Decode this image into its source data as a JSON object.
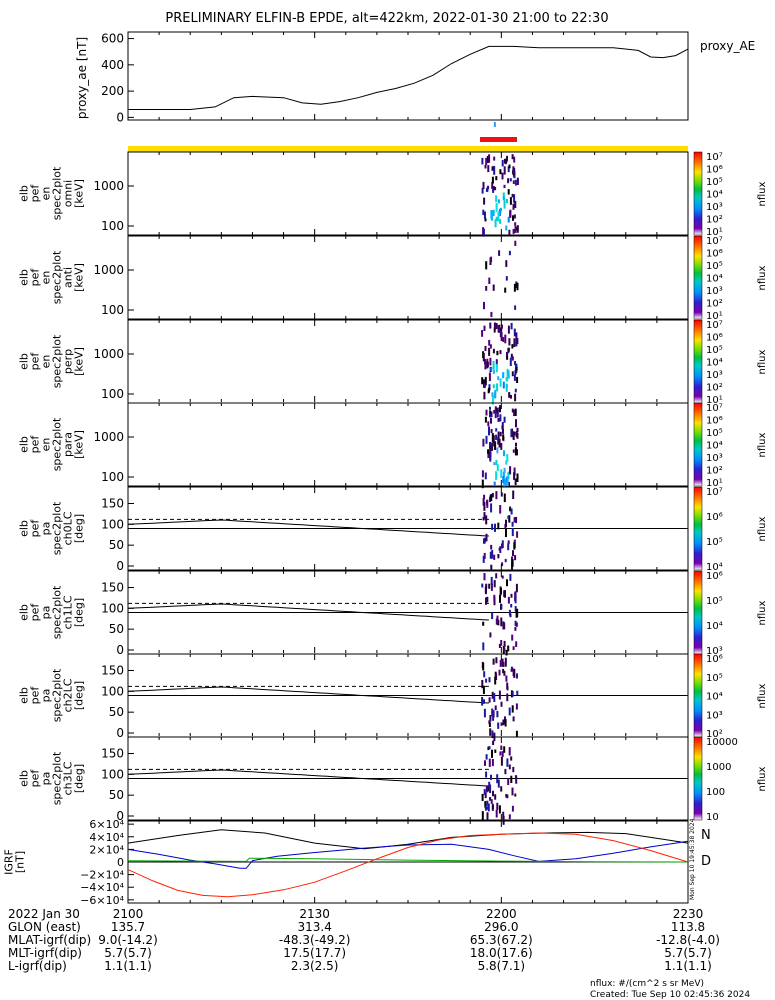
{
  "title": "PRELIMINARY ELFIN-B EPDE, alt=422km, 2022-01-30 21:00 to 22:30",
  "ae_panel": {
    "ylabel": "proxy_ae [nT]",
    "legend": "proxy_AE",
    "yticks": [
      "600",
      "400",
      "200",
      "0"
    ],
    "series": {
      "name": "proxy_AE",
      "t": [
        0,
        5,
        10,
        14,
        17,
        20,
        25,
        28,
        31,
        34,
        37,
        40,
        43,
        46,
        49,
        52,
        55,
        58,
        60,
        62,
        66,
        70,
        74,
        78,
        82,
        84,
        86,
        88,
        90
      ],
      "v": [
        60,
        60,
        60,
        80,
        150,
        160,
        150,
        110,
        100,
        120,
        150,
        190,
        220,
        260,
        320,
        410,
        480,
        540,
        540,
        540,
        530,
        530,
        530,
        530,
        510,
        460,
        455,
        470,
        520
      ]
    }
  },
  "spec_panels": [
    {
      "ylabel_lines": [
        "elb",
        "pef",
        "en",
        "spec2plot",
        "omni",
        "[keV]"
      ],
      "yticks": [
        "1000",
        "100"
      ],
      "cbar_ticks": [
        "10⁷",
        "10⁶",
        "10⁵",
        "10⁴",
        "10³",
        "10²",
        "10¹"
      ],
      "cbar_label": "nflux"
    },
    {
      "ylabel_lines": [
        "elb",
        "pef",
        "en",
        "spec2plot",
        "anti",
        "[keV]"
      ],
      "yticks": [
        "1000",
        "100"
      ],
      "cbar_ticks": [
        "10⁷",
        "10⁶",
        "10⁵",
        "10⁴",
        "10³",
        "10²",
        "10¹"
      ],
      "cbar_label": "nflux"
    },
    {
      "ylabel_lines": [
        "elb",
        "pef",
        "en",
        "spec2plot",
        "perp",
        "[keV]"
      ],
      "yticks": [
        "1000",
        "100"
      ],
      "cbar_ticks": [
        "10⁷",
        "10⁶",
        "10⁵",
        "10⁴",
        "10³",
        "10²",
        "10¹"
      ],
      "cbar_label": "nflux"
    },
    {
      "ylabel_lines": [
        "elb",
        "pef",
        "en",
        "spec2plot",
        "para",
        "[keV]"
      ],
      "yticks": [
        "1000",
        "100"
      ],
      "cbar_ticks": [
        "10⁷",
        "10⁶",
        "10⁵",
        "10⁴",
        "10³",
        "10²",
        "10¹"
      ],
      "cbar_label": "nflux"
    }
  ],
  "pa_panels": [
    {
      "ylabel_lines": [
        "elb",
        "pef",
        "pa",
        "spec2plot",
        "ch0LC",
        "[deg]"
      ],
      "yticks": [
        "150",
        "100",
        "50",
        "0"
      ],
      "cbar_ticks": [
        "10⁷",
        "10⁶",
        "10⁵",
        "10⁴"
      ],
      "cbar_label": "nflux"
    },
    {
      "ylabel_lines": [
        "elb",
        "pef",
        "pa",
        "spec2plot",
        "ch1LC",
        "[deg]"
      ],
      "yticks": [
        "150",
        "100",
        "50",
        "0"
      ],
      "cbar_ticks": [
        "10⁶",
        "10⁵",
        "10⁴",
        "10³"
      ],
      "cbar_label": "nflux"
    },
    {
      "ylabel_lines": [
        "elb",
        "pef",
        "pa",
        "spec2plot",
        "ch2LC",
        "[deg]"
      ],
      "yticks": [
        "150",
        "100",
        "50",
        "0"
      ],
      "cbar_ticks": [
        "10⁶",
        "10⁵",
        "10⁴",
        "10³",
        "10²"
      ],
      "cbar_label": "nflux"
    },
    {
      "ylabel_lines": [
        "elb",
        "pef",
        "pa",
        "spec2plot",
        "ch3LC",
        "[deg]"
      ],
      "yticks": [
        "150",
        "100",
        "50",
        "0"
      ],
      "cbar_ticks": [
        "10000",
        "1000",
        "100",
        "10"
      ],
      "cbar_label": "nflux"
    }
  ],
  "igrf_panel": {
    "ylabel_lines": [
      "IGRF",
      "[nT]"
    ],
    "yticks": [
      "6×10⁴",
      "4×10⁴",
      "2×10⁴",
      "0",
      "−2×10⁴",
      "−4×10⁴",
      "−6×10⁴"
    ],
    "legend": [
      {
        "label": "N",
        "color": "#0000cc"
      },
      {
        "label": "D",
        "color": "#ff2200"
      }
    ],
    "side_note": "Mon Sep 10 19:45:38 2024",
    "series": [
      {
        "name": "black",
        "color": "#000000",
        "t": [
          0,
          8,
          15,
          22,
          30,
          38,
          45,
          52,
          60,
          67,
          74,
          80,
          86,
          90
        ],
        "v": [
          30000,
          42000,
          51000,
          46000,
          30000,
          21000,
          28000,
          39000,
          44000,
          46000,
          47000,
          45000,
          36000,
          30000
        ]
      },
      {
        "name": "blue",
        "color": "#0000cc",
        "t": [
          0,
          5,
          10,
          14,
          18,
          19,
          20,
          21,
          24,
          30,
          38,
          45,
          52,
          58,
          62,
          66,
          72,
          78,
          84,
          90
        ],
        "v": [
          20000,
          12000,
          3000,
          -3000,
          -10000,
          -10000,
          2000,
          4000,
          9000,
          15000,
          22000,
          27000,
          28000,
          20000,
          10000,
          1000,
          5000,
          14000,
          24000,
          33000
        ]
      },
      {
        "name": "red",
        "color": "#ff2200",
        "t": [
          0,
          4,
          8,
          12,
          16,
          20,
          25,
          30,
          35,
          40,
          45,
          50,
          55,
          60,
          66,
          72,
          78,
          84,
          90
        ],
        "v": [
          -12000,
          -30000,
          -45000,
          -53000,
          -55000,
          -52000,
          -44000,
          -32000,
          -14000,
          5000,
          23000,
          35000,
          42000,
          44000,
          46000,
          44000,
          34000,
          18000,
          0
        ]
      },
      {
        "name": "green",
        "color": "#00aa00",
        "t": [
          0,
          10,
          19,
          19.5,
          30,
          45,
          60,
          75,
          90
        ],
        "v": [
          2000,
          1500,
          1000,
          6000,
          5000,
          3000,
          1500,
          500,
          0
        ]
      }
    ]
  },
  "bottom_table": {
    "date": "2022 Jan 30",
    "rows": [
      {
        "label": "GLON (east)",
        "values": [
          "135.7",
          "313.4",
          "296.0",
          "113.8"
        ]
      },
      {
        "label": "MLAT-igrf(dip)",
        "values": [
          "9.0(-14.2)",
          "-48.3(-49.2)",
          "65.3(67.2)",
          "-12.8(-4.0)"
        ]
      },
      {
        "label": "MLT-igrf(dip)",
        "values": [
          "5.7(5.7)",
          "17.5(17.7)",
          "18.0(17.6)",
          "5.7(5.7)"
        ]
      },
      {
        "label": "L-igrf(dip)",
        "values": [
          "1.1(1.1)",
          "2.3(2.5)",
          "5.8(7.1)",
          "1.1(1.1)"
        ]
      }
    ],
    "time_labels": [
      "2100",
      "2130",
      "2200",
      "2230"
    ]
  },
  "footer": {
    "units": "nflux: #/(cm^2 s sr MeV)",
    "created": "Created: Tue Sep 10 02:45:36 2024"
  },
  "chart_data": {
    "type": "line",
    "title": "PRELIMINARY ELFIN-B EPDE, alt=422km, 2022-01-30 21:00 to 22:30",
    "x_unit_labels": [
      "2100",
      "2130",
      "2200",
      "2230"
    ],
    "panels": [
      "proxy_ae",
      "en omni",
      "en anti",
      "en perp",
      "en para",
      "pa ch0LC",
      "pa ch1LC",
      "pa ch2LC",
      "pa ch3LC",
      "IGRF"
    ],
    "ae_ylim": [
      0,
      650
    ],
    "igrf_ylim": [
      -65000,
      65000
    ],
    "energy_ylim_keV": [
      63,
      7000
    ],
    "pa_ylim_deg": [
      0,
      180
    ],
    "grid": false
  }
}
